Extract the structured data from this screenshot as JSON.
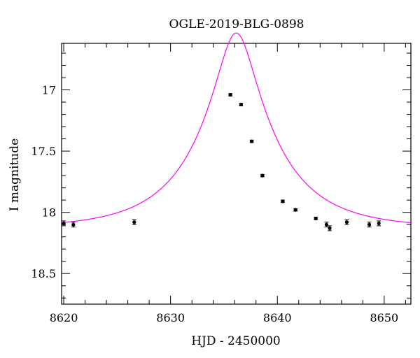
{
  "chart_data": {
    "type": "scatter",
    "title": "OGLE-2019-BLG-0898",
    "xlabel": "HJD - 2450000",
    "ylabel": "I magnitude",
    "xlim": [
      8619.8,
      8652.5
    ],
    "ylim": [
      18.75,
      16.62
    ],
    "y_inverted": true,
    "grid": false,
    "x_ticks": [
      8620,
      8630,
      8640,
      8650
    ],
    "x_tick_labels": [
      "8620",
      "8630",
      "8640",
      "8650"
    ],
    "y_ticks": [
      17,
      17.5,
      18,
      18.5
    ],
    "y_tick_labels": [
      "17",
      "17.5",
      "18",
      "18.5"
    ],
    "model": {
      "color": "#ff00ff",
      "baseline": 18.13,
      "t0": 8636.15,
      "u0": 0.235,
      "tE": 7.3
    },
    "series": [
      {
        "color": "#000000",
        "x": [
          8620.0,
          8620.9,
          8626.6,
          8635.6,
          8636.6,
          8637.6,
          8638.6,
          8640.5,
          8641.7,
          8643.6,
          8644.6,
          8644.9,
          8646.5,
          8648.6,
          8649.5
        ],
        "y": [
          18.09,
          18.1,
          18.08,
          17.04,
          17.12,
          17.42,
          17.7,
          17.91,
          17.98,
          18.05,
          18.1,
          18.13,
          18.08,
          18.1,
          18.09
        ],
        "err": [
          0.02,
          0.02,
          0.02,
          0.01,
          0.01,
          0.01,
          0.01,
          0.01,
          0.01,
          0.01,
          0.02,
          0.02,
          0.02,
          0.02,
          0.02
        ]
      }
    ]
  }
}
